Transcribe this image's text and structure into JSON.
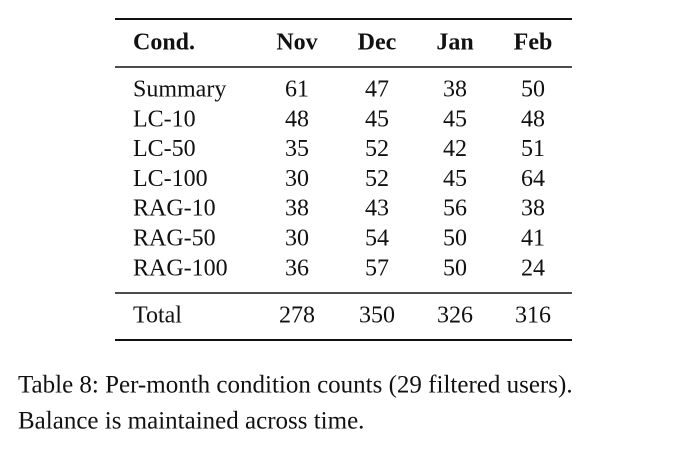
{
  "table": {
    "header": [
      "Cond.",
      "Nov",
      "Dec",
      "Jan",
      "Feb"
    ],
    "rows": [
      [
        "Summary",
        61,
        47,
        38,
        50
      ],
      [
        "LC-10",
        48,
        45,
        45,
        48
      ],
      [
        "LC-50",
        35,
        52,
        42,
        51
      ],
      [
        "LC-100",
        30,
        52,
        45,
        64
      ],
      [
        "RAG-10",
        38,
        43,
        56,
        38
      ],
      [
        "RAG-50",
        30,
        54,
        50,
        41
      ],
      [
        "RAG-100",
        36,
        57,
        50,
        24
      ]
    ],
    "total": [
      "Total",
      278,
      350,
      326,
      316
    ]
  },
  "caption": [
    "Table 8: Per-month condition counts (29 filtered users).",
    "Balance is maintained across time."
  ]
}
